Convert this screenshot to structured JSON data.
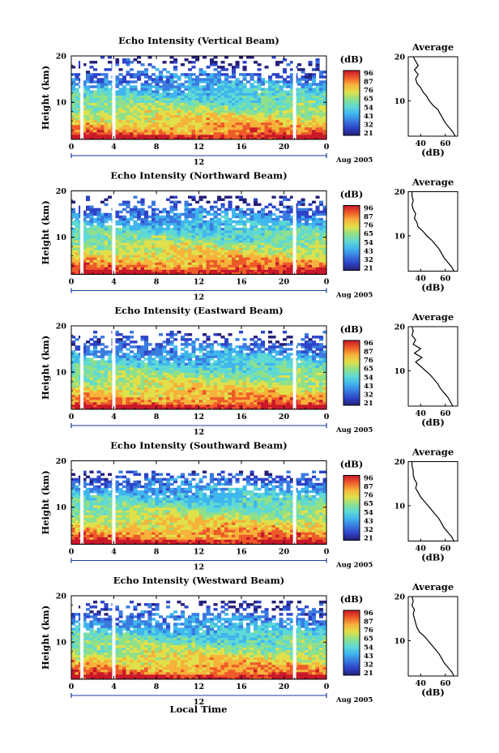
{
  "chart_data": {
    "type": "heatmap",
    "period_label": "Aug 2005",
    "date_marker": "12",
    "xlabel": "Local Time",
    "ylabel": "Height (km)",
    "x_ticks": [
      "0",
      "4",
      "8",
      "12",
      "16",
      "20",
      "0"
    ],
    "y_ticks": [
      "10",
      "20"
    ],
    "ylim": [
      2,
      20
    ],
    "colorbar_unit": "(dB)",
    "colorbar_ticks": [
      "96",
      "87",
      "76",
      "65",
      "54",
      "43",
      "32",
      "21"
    ],
    "colormap": [
      "#24207a",
      "#2d44c8",
      "#3a7be0",
      "#3fb6ee",
      "#5fd9d4",
      "#8fe08a",
      "#e0e04a",
      "#f6b23a",
      "#ee5a2a",
      "#c8182a"
    ],
    "average_title": "Average",
    "average_xlabel": "(dB)",
    "average_xticks": [
      "40",
      "60"
    ],
    "average_xlim": [
      30,
      70
    ],
    "panels": [
      {
        "title": "Echo Intensity (Vertical Beam)",
        "gaps_hours": [
          1.0,
          4.0,
          21.0
        ],
        "data_top_km": 20,
        "average_profile": {
          "height_km": [
            2,
            3,
            4,
            5,
            6,
            7,
            8,
            9,
            10,
            11,
            12,
            13,
            14,
            15,
            16,
            17,
            18,
            19,
            20
          ],
          "db": [
            68,
            66,
            63,
            60,
            58,
            56,
            54,
            50,
            47,
            45,
            42,
            40,
            37,
            36,
            38,
            35,
            38,
            36,
            34
          ]
        }
      },
      {
        "title": "Echo Intensity (Northward Beam)",
        "gaps_hours": [
          1.0,
          4.0,
          21.0
        ],
        "data_top_km": 19,
        "average_profile": {
          "height_km": [
            2,
            3,
            4,
            5,
            6,
            7,
            8,
            9,
            10,
            11,
            12,
            13,
            14,
            15,
            16,
            17,
            18,
            19,
            20
          ],
          "db": [
            67,
            65,
            62,
            59,
            57,
            55,
            52,
            49,
            45,
            42,
            38,
            37,
            35,
            36,
            34,
            33,
            34,
            33,
            33
          ]
        }
      },
      {
        "title": "Echo Intensity (Eastward Beam)",
        "gaps_hours": [
          1.0,
          4.0,
          21.0
        ],
        "data_top_km": 19,
        "average_profile": {
          "height_km": [
            2,
            3,
            4,
            5,
            6,
            7,
            8,
            9,
            10,
            11,
            12,
            13,
            14,
            15,
            16,
            17,
            18,
            19,
            20
          ],
          "db": [
            66,
            64,
            62,
            59,
            56,
            54,
            51,
            48,
            44,
            40,
            36,
            41,
            35,
            40,
            34,
            36,
            33,
            34,
            33
          ]
        }
      },
      {
        "title": "Echo Intensity (Southward Beam)",
        "gaps_hours": [
          1.0,
          4.0,
          21.0
        ],
        "data_top_km": 18,
        "average_profile": {
          "height_km": [
            2,
            3,
            4,
            5,
            6,
            7,
            8,
            9,
            10,
            11,
            12,
            13,
            14,
            15,
            16,
            17,
            18,
            19,
            20
          ],
          "db": [
            67,
            65,
            62,
            59,
            57,
            55,
            52,
            49,
            46,
            43,
            40,
            38,
            36,
            37,
            35,
            34,
            34,
            33,
            33
          ]
        }
      },
      {
        "title": "Echo Intensity (Westward Beam)",
        "gaps_hours": [
          1.0,
          4.0,
          21.0
        ],
        "data_top_km": 19,
        "average_profile": {
          "height_km": [
            2,
            3,
            4,
            5,
            6,
            7,
            8,
            9,
            10,
            11,
            12,
            13,
            14,
            15,
            16,
            17,
            18,
            19,
            20
          ],
          "db": [
            67,
            65,
            62,
            59,
            57,
            55,
            52,
            49,
            46,
            43,
            39,
            37,
            36,
            35,
            34,
            35,
            33,
            34,
            33
          ]
        }
      }
    ]
  }
}
